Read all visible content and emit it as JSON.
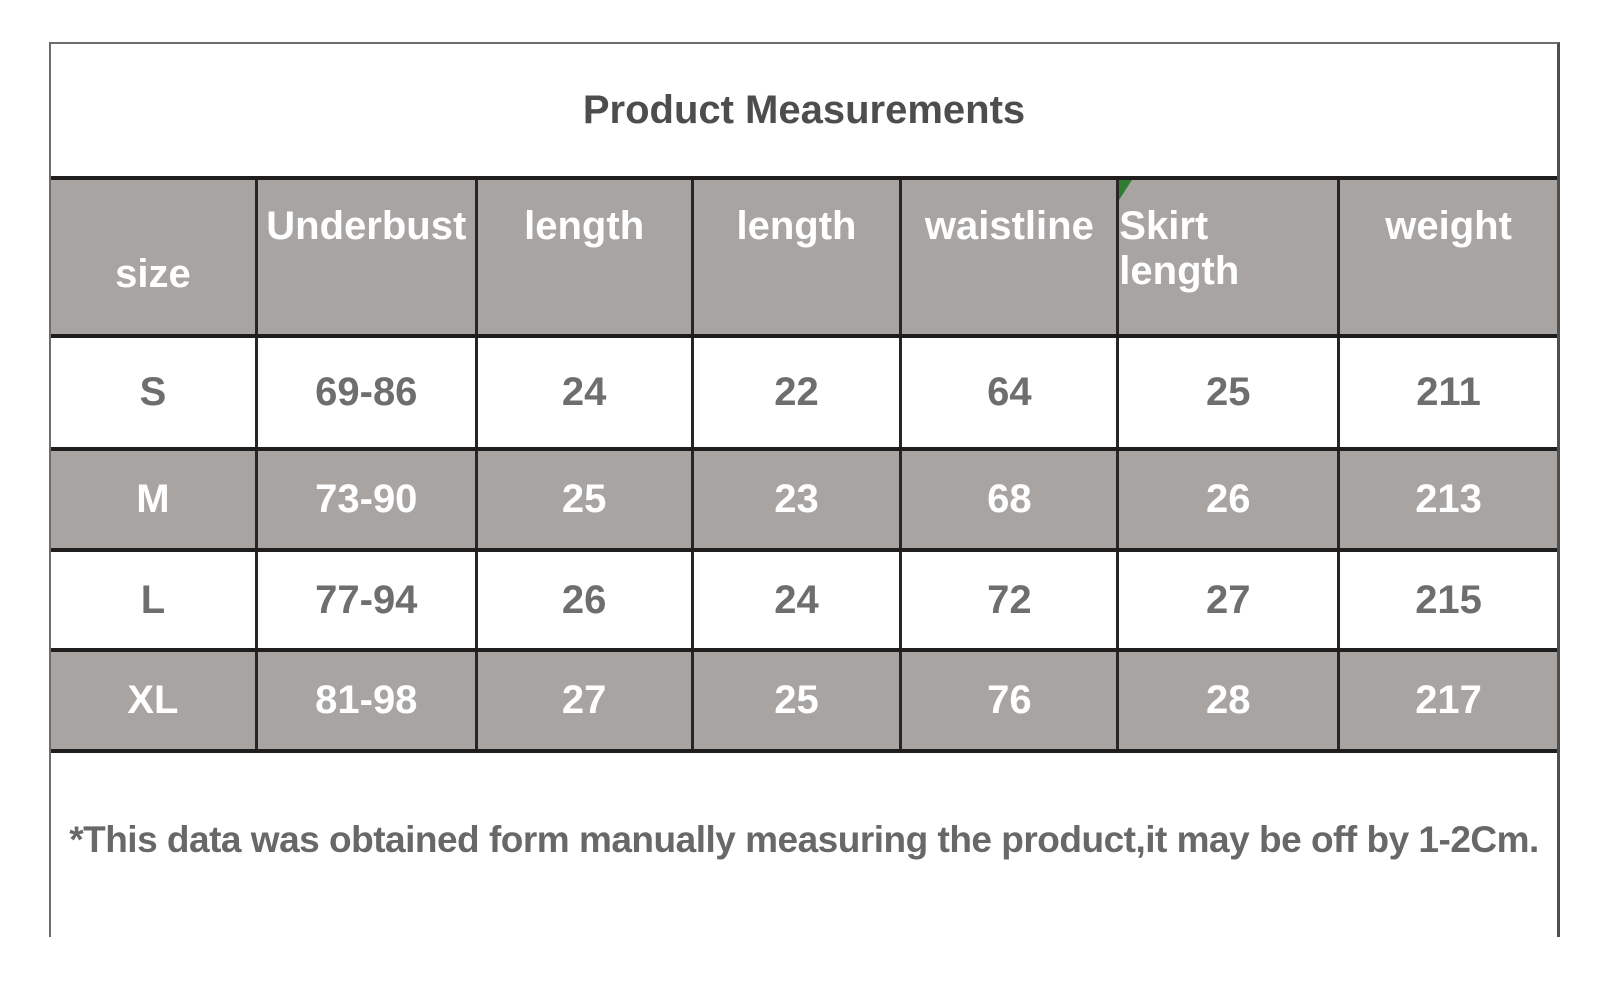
{
  "table": {
    "title": "Product Measurements",
    "header": {
      "cells": [
        "size",
        "Underbust",
        "length",
        "length",
        "waistline",
        "Skirt length",
        "weight"
      ]
    },
    "rows": [
      {
        "cells": [
          "S",
          "69-86",
          "24",
          "22",
          "64",
          "25",
          "211"
        ]
      },
      {
        "cells": [
          "M",
          "73-90",
          "25",
          "23",
          "68",
          "26",
          "213"
        ]
      },
      {
        "cells": [
          "L",
          "77-94",
          "26",
          "24",
          "72",
          "27",
          "215"
        ]
      },
      {
        "cells": [
          "XL",
          "81-98",
          "27",
          "25",
          "76",
          "28",
          "217"
        ]
      }
    ],
    "footnote": "*This data was obtained form manually measuring the product,it may be off by 1-2Cm."
  },
  "colors": {
    "cell_gray": "#a8a4a2",
    "border_dark": "#1e1e1e",
    "title_text": "#4d4d4d",
    "data_text": "#6e6e6e",
    "light_text": "#ffffff",
    "corner_marker_green": "#2e7d32"
  },
  "chart_data": {
    "type": "table",
    "title": "Product Measurements",
    "columns": [
      "size",
      "Underbust",
      "length",
      "length",
      "waistline",
      "Skirt length",
      "weight"
    ],
    "rows": [
      [
        "S",
        "69-86",
        24,
        22,
        64,
        25,
        211
      ],
      [
        "M",
        "73-90",
        25,
        23,
        68,
        26,
        213
      ],
      [
        "L",
        "77-94",
        26,
        24,
        72,
        27,
        215
      ],
      [
        "XL",
        "81-98",
        27,
        25,
        76,
        28,
        217
      ]
    ],
    "footnote": "*This data was obtained form manually measuring the product,it may be off by 1-2Cm."
  }
}
